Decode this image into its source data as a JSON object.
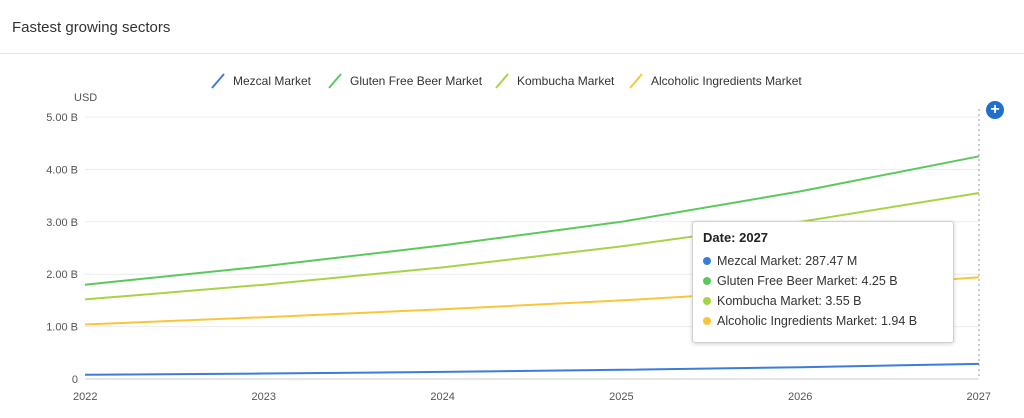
{
  "header": {
    "title": "Fastest growing sectors"
  },
  "controls": {
    "add_icon": "plus-circle-icon",
    "add_symbol": "+"
  },
  "chart_data": {
    "type": "line",
    "y_unit_label": "USD",
    "x": [
      2022,
      2023,
      2024,
      2025,
      2026,
      2027
    ],
    "x_tick_labels": [
      "2022",
      "2023",
      "2024",
      "2025",
      "2026",
      "2027"
    ],
    "ylim": [
      0,
      5000000000
    ],
    "y_ticks": [
      {
        "value": 0,
        "label": "0"
      },
      {
        "value": 1000000000,
        "label": "1.00 B"
      },
      {
        "value": 2000000000,
        "label": "2.00 B"
      },
      {
        "value": 3000000000,
        "label": "3.00 B"
      },
      {
        "value": 4000000000,
        "label": "4.00 B"
      },
      {
        "value": 5000000000,
        "label": "5.00 B"
      }
    ],
    "grid": true,
    "legend_position": "top",
    "series": [
      {
        "name": "Mezcal Market",
        "color": "#3b7ddd",
        "values": [
          80000000,
          105000000,
          135000000,
          175000000,
          225000000,
          287470000
        ]
      },
      {
        "name": "Gluten Free Beer Market",
        "color": "#5cc85c",
        "values": [
          1800000000,
          2150000000,
          2550000000,
          3000000000,
          3580000000,
          4250000000
        ]
      },
      {
        "name": "Kombucha Market",
        "color": "#a6d443",
        "values": [
          1520000000,
          1800000000,
          2130000000,
          2530000000,
          3000000000,
          3550000000
        ]
      },
      {
        "name": "Alcoholic Ingredients Market",
        "color": "#f9c63a",
        "values": [
          1040000000,
          1180000000,
          1330000000,
          1500000000,
          1700000000,
          1940000000
        ]
      }
    ],
    "hover": {
      "x": 2027,
      "title": "Date: 2027",
      "rows": [
        {
          "text": "Mezcal Market: 287.47 M",
          "color": "#3b7ddd"
        },
        {
          "text": "Gluten Free Beer Market: 4.25 B",
          "color": "#5cc85c"
        },
        {
          "text": "Kombucha Market: 3.55 B",
          "color": "#a6d443"
        },
        {
          "text": "Alcoholic Ingredients Market: 1.94 B",
          "color": "#f9c63a"
        }
      ]
    }
  }
}
